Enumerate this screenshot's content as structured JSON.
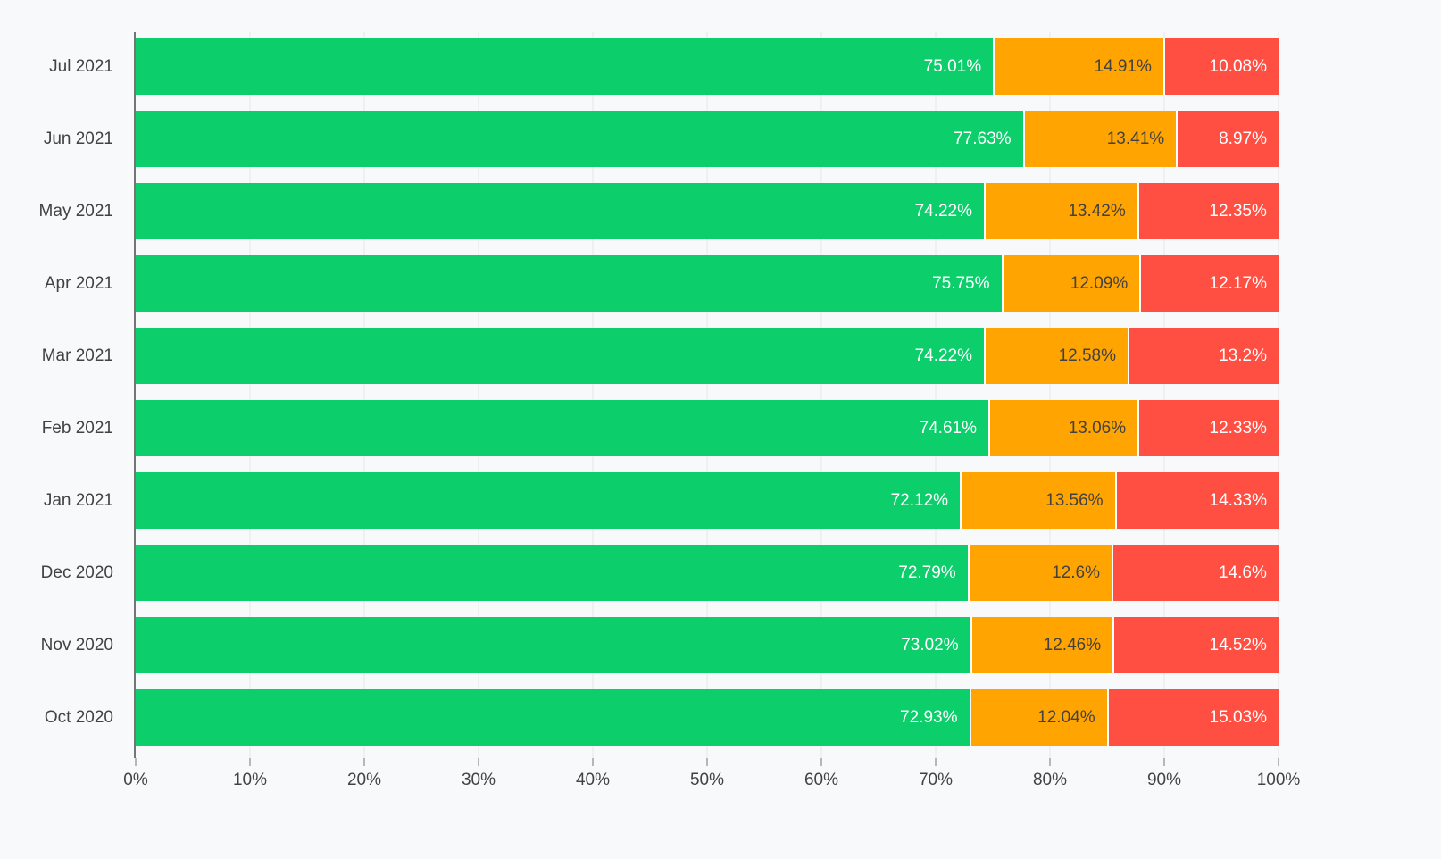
{
  "chart": {
    "background_color": "#f8f9fa",
    "axis_line_color": "#757575",
    "gridline_color": "#e8e8e8",
    "text_color": "#424242"
  },
  "chart_data": {
    "type": "bar",
    "orientation": "horizontal",
    "stacked": true,
    "unit": "%",
    "title": "",
    "xlabel": "",
    "ylabel": "",
    "legend": "none",
    "grid": "vertical",
    "categories": [
      "Jul 2021",
      "Jun 2021",
      "May 2021",
      "Apr 2021",
      "Mar 2021",
      "Feb 2021",
      "Jan 2021",
      "Dec 2020",
      "Nov 2020",
      "Oct 2020"
    ],
    "series": [
      {
        "name": "green",
        "color": "#0cce6b",
        "label_color": "#ffffff",
        "values": [
          75.01,
          77.63,
          74.22,
          75.75,
          74.22,
          74.61,
          72.12,
          72.79,
          73.02,
          72.93
        ]
      },
      {
        "name": "orange",
        "color": "#ffa400",
        "label_color": "#424242",
        "values": [
          14.91,
          13.41,
          13.42,
          12.09,
          12.58,
          13.06,
          13.56,
          12.6,
          12.46,
          12.04
        ]
      },
      {
        "name": "red",
        "color": "#ff4e42",
        "label_color": "#ffffff",
        "values": [
          10.08,
          8.97,
          12.35,
          12.17,
          13.2,
          12.33,
          14.33,
          14.6,
          14.52,
          15.03
        ]
      }
    ],
    "x_axis": {
      "min": 0,
      "max": 100,
      "tick_labels": [
        "0%",
        "10%",
        "20%",
        "30%",
        "40%",
        "50%",
        "60%",
        "70%",
        "80%",
        "90%",
        "100%"
      ]
    }
  }
}
